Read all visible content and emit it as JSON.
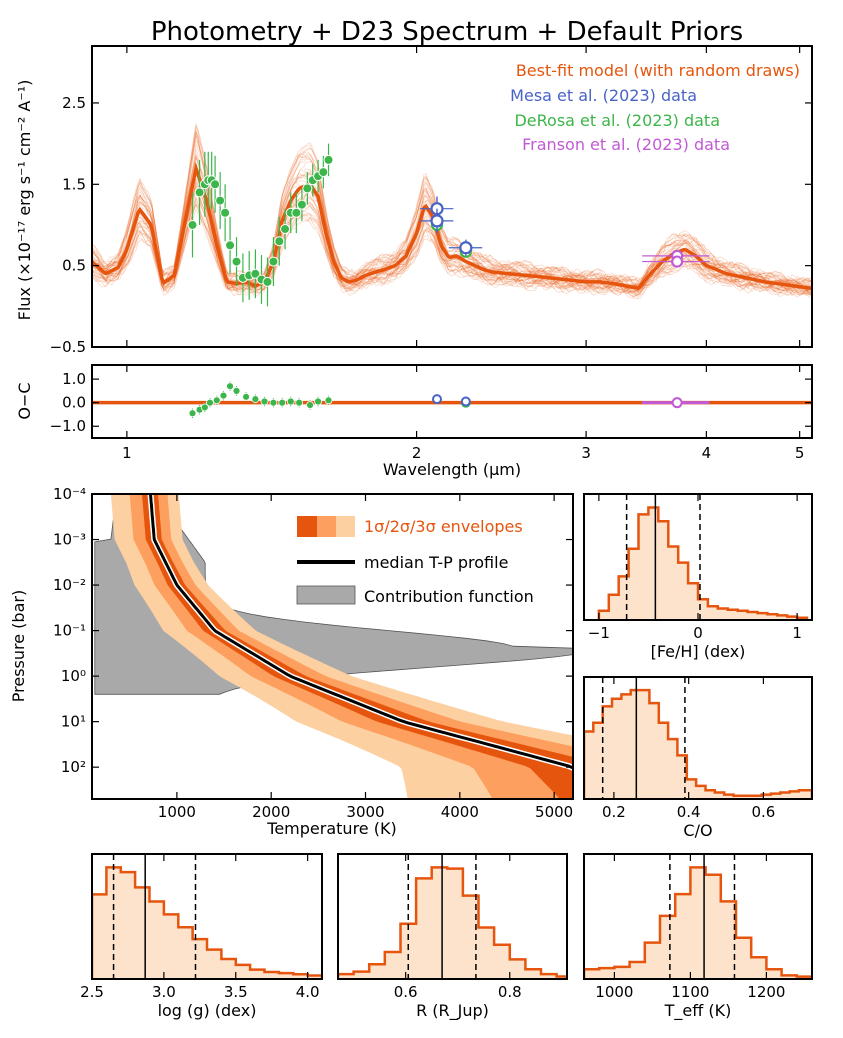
{
  "title": "Photometry + D23 Spectrum + Default Priors",
  "colors": {
    "model": "#e6550d",
    "mesa": "#4863c6",
    "derosa": "#3cb54a",
    "franson": "#c25ad6",
    "fill1": "#e6550d",
    "fill2": "#fd9f5e",
    "fill3": "#fdd0a2",
    "hist_fill": "#fde3cb",
    "contrib": "#a9a9a9"
  },
  "legend": {
    "model": "Best-fit model (with random draws)",
    "mesa": "Mesa et al. (2023) data",
    "derosa": "DeRosa et al. (2023) data",
    "franson": "Franson et al. (2023) data",
    "envelopes": "1σ/2σ/3σ envelopes",
    "median": "median T-P profile",
    "contribution": "Contribution function"
  },
  "chart_data": [
    {
      "id": "spectrum",
      "type": "line",
      "title": "Photometry + D23 Spectrum + Default Priors",
      "xlabel": "",
      "ylabel": "Flux (×10⁻¹⁷ erg s⁻¹ cm⁻² A⁻¹)",
      "xscale": "log",
      "xlim": [
        0.92,
        5.15
      ],
      "ylim": [
        -0.5,
        3.2
      ],
      "yticks": [
        -0.5,
        0.5,
        1.5,
        2.5
      ],
      "ytick_labels": [
        "−0.5",
        "0.5",
        "1.5",
        "2.5"
      ],
      "model_wavelength": [
        0.92,
        0.95,
        0.98,
        1.0,
        1.03,
        1.06,
        1.09,
        1.12,
        1.15,
        1.18,
        1.21,
        1.24,
        1.27,
        1.3,
        1.33,
        1.36,
        1.39,
        1.42,
        1.45,
        1.48,
        1.51,
        1.55,
        1.58,
        1.61,
        1.64,
        1.67,
        1.7,
        1.73,
        1.77,
        1.81,
        1.85,
        1.9,
        1.95,
        2.0,
        2.04,
        2.08,
        2.12,
        2.16,
        2.2,
        2.25,
        2.3,
        2.35,
        2.4,
        2.5,
        2.6,
        2.7,
        2.8,
        2.9,
        3.0,
        3.1,
        3.2,
        3.3,
        3.4,
        3.5,
        3.6,
        3.7,
        3.8,
        3.9,
        4.0,
        4.2,
        4.4,
        4.6,
        4.8,
        5.0,
        5.15
      ],
      "model_flux": [
        0.55,
        0.4,
        0.48,
        0.7,
        1.2,
        1.0,
        0.28,
        0.38,
        1.05,
        1.7,
        1.3,
        0.75,
        0.3,
        0.28,
        0.3,
        0.25,
        0.3,
        0.55,
        1.05,
        1.3,
        1.45,
        1.5,
        1.35,
        0.9,
        0.55,
        0.35,
        0.3,
        0.32,
        0.38,
        0.42,
        0.45,
        0.5,
        0.62,
        0.9,
        1.25,
        1.1,
        0.75,
        0.6,
        0.62,
        0.55,
        0.5,
        0.45,
        0.42,
        0.4,
        0.38,
        0.36,
        0.34,
        0.32,
        0.3,
        0.3,
        0.28,
        0.25,
        0.22,
        0.4,
        0.55,
        0.65,
        0.7,
        0.62,
        0.5,
        0.4,
        0.35,
        0.3,
        0.27,
        0.24,
        0.22
      ],
      "mesa": {
        "x": [
          2.1,
          2.1,
          2.25
        ],
        "y": [
          1.2,
          1.05,
          0.72
        ],
        "yerr": [
          0.15,
          0.15,
          0.1
        ]
      },
      "derosa": {
        "x": [
          1.17,
          1.19,
          1.205,
          1.215,
          1.225,
          1.235,
          1.25,
          1.265,
          1.28,
          1.3,
          1.32,
          1.34,
          1.36,
          1.38,
          1.4,
          1.42,
          1.44,
          1.46,
          1.48,
          1.5,
          1.52,
          1.54,
          1.56,
          1.58,
          1.6,
          1.62,
          2.1,
          2.25
        ],
        "y": [
          1.0,
          1.4,
          1.5,
          1.55,
          1.55,
          1.5,
          1.3,
          1.15,
          0.75,
          0.55,
          0.35,
          0.38,
          0.4,
          0.33,
          0.3,
          0.55,
          0.8,
          0.95,
          1.15,
          1.15,
          1.25,
          1.45,
          1.55,
          1.6,
          1.65,
          1.8,
          1.0,
          0.67
        ],
        "yerr": [
          0.4,
          0.4,
          0.4,
          0.35,
          0.35,
          0.35,
          0.35,
          0.35,
          0.35,
          0.3,
          0.3,
          0.3,
          0.3,
          0.3,
          0.3,
          0.3,
          0.3,
          0.25,
          0.25,
          0.25,
          0.2,
          0.2,
          0.2,
          0.2,
          0.2,
          0.2,
          0.05,
          0.05
        ]
      },
      "franson": {
        "x": [
          3.73,
          3.73
        ],
        "y": [
          0.62,
          0.55
        ],
        "xerr": [
          0.3,
          0.3
        ]
      }
    },
    {
      "id": "residuals",
      "type": "scatter",
      "xlabel": "Wavelength (μm)",
      "ylabel": "O−C",
      "xscale": "log",
      "xlim": [
        0.92,
        5.15
      ],
      "ylim": [
        -1.5,
        1.6
      ],
      "yticks": [
        1.0,
        0.0,
        -1.0
      ],
      "ytick_labels": [
        "1.0",
        "0.0",
        "−1.0"
      ],
      "xticks": [
        1,
        2,
        3,
        4,
        5
      ],
      "xtick_labels": [
        "1",
        "2",
        "3",
        "4",
        "5"
      ],
      "derosa": {
        "x": [
          1.17,
          1.19,
          1.205,
          1.22,
          1.24,
          1.26,
          1.28,
          1.3,
          1.33,
          1.36,
          1.39,
          1.42,
          1.45,
          1.48,
          1.51,
          1.55,
          1.58,
          1.62,
          2.25
        ],
        "y": [
          -0.45,
          -0.3,
          -0.2,
          0.0,
          0.1,
          0.3,
          0.7,
          0.5,
          0.25,
          0.15,
          0.05,
          0.0,
          0.0,
          0.05,
          0.0,
          -0.1,
          0.05,
          0.1,
          0.0
        ]
      },
      "mesa": {
        "x": [
          2.1,
          2.25
        ],
        "y": [
          0.15,
          0.05
        ]
      },
      "franson": {
        "x": [
          3.73
        ],
        "y": [
          0.0
        ]
      }
    },
    {
      "id": "tp-profile",
      "type": "area",
      "xlabel": "Temperature (K)",
      "ylabel": "Pressure (bar)",
      "yscale": "log-inverted",
      "xlim": [
        100,
        5200
      ],
      "ylim": [
        0.0001,
        500
      ],
      "xticks": [
        1000,
        2000,
        3000,
        4000,
        5000
      ],
      "xtick_labels": [
        "1000",
        "2000",
        "3000",
        "4000",
        "5000"
      ],
      "yticks": [
        0.0001,
        0.001,
        0.01,
        0.1,
        1,
        10,
        100
      ],
      "ytick_labels": [
        "10⁻⁴",
        "10⁻³",
        "10⁻²",
        "10⁻¹",
        "10⁰",
        "10¹",
        "10²"
      ],
      "median_P": [
        0.0001,
        0.001,
        0.01,
        0.1,
        1,
        10,
        100
      ],
      "median_T": [
        720,
        760,
        1000,
        1400,
        2200,
        3400,
        5200
      ]
    },
    {
      "id": "hist-feh",
      "type": "bar",
      "xlabel": "[Fe/H] (dex)",
      "xlim": [
        -1.15,
        1.15
      ],
      "xticks": [
        -1,
        0,
        1
      ],
      "xtick_labels": [
        "−1",
        "0",
        "1"
      ],
      "bin_edges": [
        -1.0,
        -0.9,
        -0.8,
        -0.7,
        -0.6,
        -0.5,
        -0.4,
        -0.3,
        -0.2,
        -0.1,
        0.0,
        0.1,
        0.2,
        0.3,
        0.4,
        0.5,
        0.6,
        0.7,
        0.8,
        0.9,
        1.0,
        1.1
      ],
      "counts": [
        8,
        22,
        38,
        62,
        92,
        98,
        86,
        64,
        50,
        32,
        18,
        12,
        10,
        9,
        8,
        7,
        6,
        5,
        4,
        3,
        2
      ],
      "quantiles": [
        -0.72,
        -0.43,
        0.02
      ]
    },
    {
      "id": "hist-co",
      "type": "bar",
      "xlabel": "C/O",
      "xlim": [
        0.12,
        0.73
      ],
      "xticks": [
        0.2,
        0.4,
        0.6
      ],
      "xtick_labels": [
        "0.2",
        "0.4",
        "0.6"
      ],
      "bin_edges": [
        0.12,
        0.145,
        0.17,
        0.195,
        0.22,
        0.245,
        0.27,
        0.295,
        0.32,
        0.345,
        0.37,
        0.395,
        0.42,
        0.445,
        0.47,
        0.495,
        0.52,
        0.545,
        0.57,
        0.595,
        0.62,
        0.645,
        0.67,
        0.695,
        0.73
      ],
      "counts": [
        62,
        70,
        85,
        92,
        96,
        100,
        100,
        88,
        70,
        55,
        40,
        18,
        12,
        8,
        6,
        4,
        3,
        3,
        3,
        4,
        5,
        6,
        7,
        8
      ],
      "quantiles": [
        0.17,
        0.26,
        0.39
      ]
    },
    {
      "id": "hist-logg",
      "type": "bar",
      "xlabel": "log (g) (dex)",
      "xlim": [
        2.5,
        4.1
      ],
      "xticks": [
        2.5,
        3.0,
        3.5,
        4.0
      ],
      "xtick_labels": [
        "2.5",
        "3.0",
        "3.5",
        "4.0"
      ],
      "bin_edges": [
        2.5,
        2.6,
        2.7,
        2.8,
        2.9,
        3.0,
        3.1,
        3.2,
        3.3,
        3.4,
        3.5,
        3.6,
        3.7,
        3.8,
        3.9,
        4.0,
        4.1
      ],
      "counts": [
        72,
        95,
        91,
        78,
        66,
        55,
        44,
        34,
        25,
        17,
        12,
        8,
        6,
        5,
        4,
        3
      ],
      "quantiles": [
        2.65,
        2.87,
        3.22
      ]
    },
    {
      "id": "hist-radius",
      "type": "bar",
      "xlabel": "R (R_Jup)",
      "xlim": [
        0.47,
        0.91
      ],
      "xticks": [
        0.6,
        0.8
      ],
      "xtick_labels": [
        "0.6",
        "0.8"
      ],
      "bin_edges": [
        0.47,
        0.5,
        0.53,
        0.56,
        0.59,
        0.62,
        0.65,
        0.68,
        0.71,
        0.74,
        0.77,
        0.8,
        0.83,
        0.86,
        0.89,
        0.91
      ],
      "counts": [
        4,
        6,
        12,
        22,
        45,
        82,
        91,
        90,
        68,
        42,
        28,
        16,
        8,
        4,
        2
      ],
      "quantiles": [
        0.605,
        0.67,
        0.735
      ]
    },
    {
      "id": "hist-teff",
      "type": "bar",
      "xlabel": "T_eff (K)",
      "xlim": [
        960,
        1260
      ],
      "xticks": [
        1000,
        1100,
        1200
      ],
      "xtick_labels": [
        "1000",
        "1100",
        "1200"
      ],
      "bin_edges": [
        960,
        980,
        1000,
        1020,
        1040,
        1060,
        1080,
        1100,
        1120,
        1140,
        1160,
        1180,
        1200,
        1220,
        1240,
        1260
      ],
      "counts": [
        8,
        9,
        10,
        14,
        30,
        52,
        70,
        92,
        86,
        64,
        34,
        18,
        8,
        3,
        2
      ],
      "quantiles": [
        1073,
        1118,
        1158
      ]
    }
  ]
}
